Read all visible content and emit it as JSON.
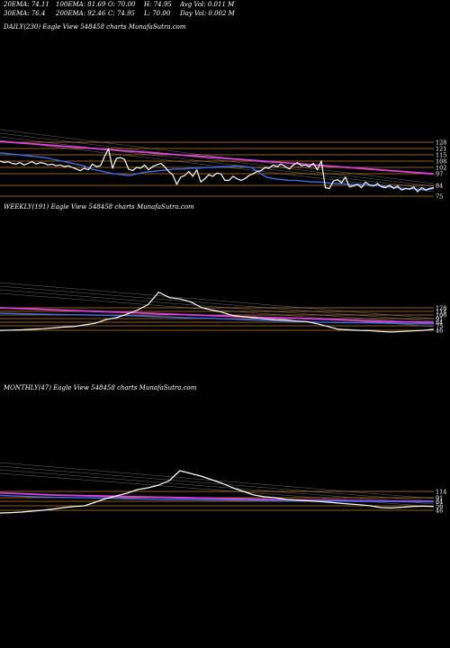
{
  "header": {
    "row1": [
      "20EMA: 74.11",
      "100EMA: 81.69",
      "O: 70.00",
      "H: 74.95",
      "Avg Vol: 0.011 M"
    ],
    "row2": [
      "30EMA: 76.4",
      "200EMA: 92.46",
      "C: 74.95",
      "L: 70.00",
      "Day Vol: 0.002 M"
    ]
  },
  "colors": {
    "price": "#ffffff",
    "ema20": "#3a6cf0",
    "ema200": "#e040e0",
    "level": "#c87a1e",
    "ema_other": "#b0b0b0"
  },
  "chart_data": [
    {
      "type": "line",
      "title": "DAILY(230) Eagle  View  548458 charts MunafaSutra.com",
      "level_labels": [
        "128",
        "121",
        "115",
        "108",
        "102",
        "97",
        "84",
        "75"
      ],
      "series": [
        {
          "values": [
            108,
            106,
            107,
            105,
            104,
            106,
            103,
            105,
            107,
            104,
            106,
            105,
            103,
            104,
            102,
            103,
            101,
            102,
            100,
            98,
            96,
            99,
            97,
            104,
            101,
            102,
            113,
            123,
            99,
            111,
            112,
            110,
            98,
            96,
            100,
            99,
            103,
            97,
            101,
            103,
            105,
            101,
            95,
            91,
            79,
            88,
            90,
            95,
            89,
            97,
            82,
            86,
            91,
            89,
            93,
            92,
            84,
            84,
            89,
            86,
            84,
            86,
            90,
            92,
            95,
            96,
            100,
            99,
            103,
            101,
            104,
            101,
            98,
            103,
            106,
            102,
            103,
            101,
            105,
            97,
            108,
            75,
            74,
            83,
            85,
            81,
            88,
            76,
            77,
            79,
            75,
            82,
            78,
            77,
            80,
            76,
            75,
            78,
            74,
            77,
            72,
            74,
            73,
            76,
            70,
            75,
            72,
            74,
            75
          ]
        },
        {
          "values": [
            118,
            117,
            116,
            115,
            114,
            113,
            112,
            110,
            108,
            106,
            104,
            102,
            98,
            96,
            94,
            92,
            91,
            90,
            92,
            94,
            95,
            96,
            97,
            98,
            98,
            99,
            99,
            100,
            100,
            101,
            101,
            102,
            101,
            100,
            94,
            88,
            86,
            85,
            84,
            84,
            83,
            82,
            82,
            81,
            80,
            80,
            79,
            79,
            78,
            78,
            77,
            76,
            75,
            74,
            74,
            73,
            72,
            74
          ]
        },
        {
          "values": [
            132,
            131,
            130,
            129,
            128,
            127,
            126,
            125,
            124,
            123,
            122,
            121,
            120,
            119,
            118,
            117,
            116,
            115,
            114,
            113,
            112,
            111,
            110,
            109,
            108,
            107,
            106,
            105,
            104,
            103,
            102,
            101,
            100,
            99,
            98,
            97,
            96,
            95,
            94,
            93,
            92
          ]
        }
      ]
    },
    {
      "type": "line",
      "title": "WEEKLY(191) Eagle  View  548458 charts MunafaSutra.com",
      "level_labels": [
        "128",
        "114",
        "106",
        "91",
        "84",
        "75",
        "46"
      ],
      "series": [
        {
          "values": [
            46,
            47,
            48,
            50,
            52,
            55,
            58,
            60,
            66,
            72,
            85,
            92,
            105,
            120,
            140,
            185,
            165,
            160,
            150,
            130,
            120,
            112,
            100,
            96,
            92,
            88,
            85,
            84,
            80,
            78,
            70,
            60,
            50,
            48,
            46,
            45,
            42,
            40,
            42,
            44,
            46,
            50
          ]
        },
        {
          "values": [
            108,
            107,
            106,
            105,
            104,
            103,
            102,
            101,
            100,
            99,
            97,
            95,
            93,
            91,
            90,
            88,
            86,
            84,
            82,
            80,
            78,
            76,
            75,
            74,
            74,
            73,
            72,
            71,
            70,
            70
          ]
        },
        {
          "values": [
            128,
            126,
            124,
            122,
            120,
            118,
            116,
            114,
            112,
            110,
            108,
            106,
            104,
            102,
            100,
            98,
            96,
            94,
            92,
            91,
            90,
            88,
            86,
            84,
            82,
            80,
            78,
            77,
            76,
            75
          ]
        }
      ]
    },
    {
      "type": "line",
      "title": "MONTHLY(47) Eagle  View  548458 charts MunafaSutra.com",
      "level_labels": [
        "114",
        "91",
        "84",
        "56",
        "46"
      ],
      "series": [
        {
          "values": [
            20,
            22,
            25,
            30,
            35,
            42,
            50,
            56,
            60,
            80,
            100,
            115,
            130,
            150,
            160,
            175,
            200,
            255,
            240,
            225,
            205,
            185,
            160,
            140,
            120,
            110,
            105,
            96,
            92,
            88,
            84,
            80,
            75,
            70,
            66,
            60,
            50,
            48,
            52,
            56,
            58,
            56
          ]
        },
        {
          "values": [
            118,
            114,
            110,
            108,
            106,
            104,
            102,
            100,
            98,
            96,
            95,
            94,
            93,
            92,
            91,
            90,
            89,
            88,
            87,
            86,
            85,
            84,
            84,
            83,
            82,
            82
          ]
        },
        {
          "values": [
            132,
            128,
            124,
            120,
            118,
            116,
            114,
            112,
            110,
            108,
            106,
            104,
            102,
            100,
            98,
            96,
            94,
            92,
            91,
            90,
            89,
            88,
            87,
            86,
            85,
            84
          ]
        }
      ]
    }
  ]
}
